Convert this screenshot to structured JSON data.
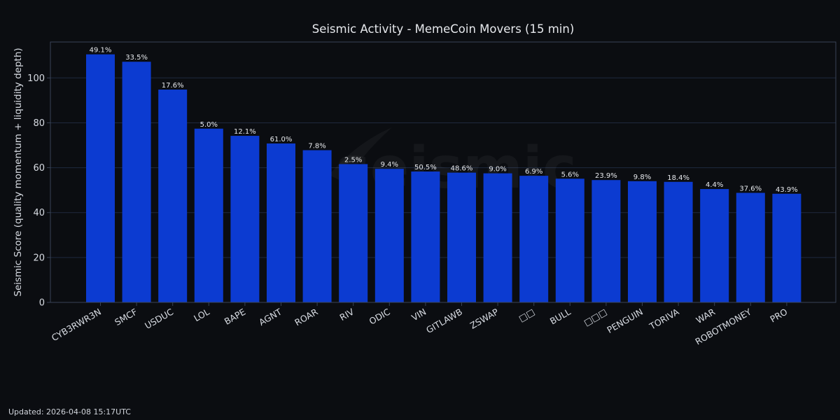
{
  "chart_data": {
    "type": "bar",
    "title": "Seismic Activity - MemeCoin Movers (15 min)",
    "xlabel": "",
    "ylabel": "Seismic Score (quality momentum + liquidity depth)",
    "ylim": [
      0,
      116
    ],
    "yticks": [
      0,
      20,
      40,
      60,
      80,
      100
    ],
    "grid": true,
    "categories": [
      "CYB3RWR3N",
      "SMCF",
      "USDUC",
      "LOL",
      "BAPE",
      "AGNT",
      "ROAR",
      "RIV",
      "ODIC",
      "VIN",
      "GITLAWB",
      "ZSWAP",
      "□□",
      "BULL",
      "□□□",
      "PENGUIN",
      "TORIVA",
      "WAR",
      "ROBOTMONEY",
      "PRO"
    ],
    "values": [
      110.5,
      107.2,
      94.8,
      77.4,
      74.2,
      70.8,
      67.8,
      61.6,
      59.5,
      58.3,
      57.8,
      57.5,
      56.4,
      55.1,
      54.5,
      54.0,
      53.7,
      50.5,
      48.8,
      48.4
    ],
    "data_labels": [
      "49.1%",
      "33.5%",
      "17.6%",
      "5.0%",
      "12.1%",
      "61.0%",
      "7.8%",
      "2.5%",
      "9.4%",
      "50.5%",
      "48.6%",
      "9.0%",
      "6.9%",
      "5.6%",
      "23.9%",
      "9.8%",
      "18.4%",
      "4.4%",
      "37.6%",
      "43.9%"
    ],
    "watermark": "seismic",
    "colors": {
      "bar": "#0c3bd1",
      "background": "#0b0d11",
      "grid": "#1f2a3f",
      "axis": "#3a4456",
      "text": "#d8dce3",
      "label": "#e6e8ec"
    }
  },
  "footer": {
    "updated": "Updated: 2026-04-08 15:17UTC"
  }
}
